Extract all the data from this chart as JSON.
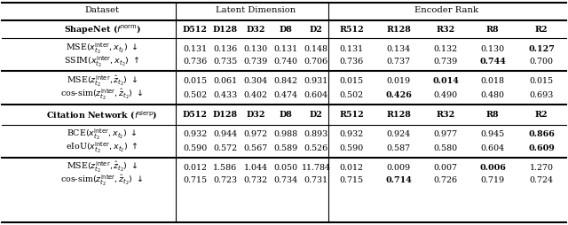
{
  "bg_color": "#ffffff",
  "top_header": {
    "col0": "Dataset",
    "col1": "Latent Dimension",
    "col2": "Encoder Rank"
  },
  "col_headers": [
    "D512",
    "D128",
    "D32",
    "D8",
    "D2",
    "R512",
    "R128",
    "R32",
    "R8",
    "R2"
  ],
  "section1_label": "ShapeNet ($f^{\\mathrm{norm}}$)",
  "section2_label": "Citation Network ($f^{\\mathrm{slerp}}$)",
  "rows": [
    {
      "group": 1,
      "subgroup": 1,
      "label": "MSE($x_{t_2}^{\\mathrm{inter}}, x_{t_2}$) $\\downarrow$",
      "values": [
        "0.131",
        "0.136",
        "0.130",
        "0.131",
        "0.148",
        "0.131",
        "0.134",
        "0.132",
        "0.130",
        "0.127"
      ],
      "bold": [
        9
      ]
    },
    {
      "group": 1,
      "subgroup": 1,
      "label": "SSIM($x_{t_2}^{\\mathrm{inter}}, x_{t_2}$) $\\uparrow$",
      "values": [
        "0.736",
        "0.735",
        "0.739",
        "0.740",
        "0.706",
        "0.736",
        "0.737",
        "0.739",
        "0.744",
        "0.700"
      ],
      "bold": [
        8
      ]
    },
    {
      "group": 1,
      "subgroup": 2,
      "label": "MSE($z_{t_2}^{\\mathrm{inter}}, \\hat{z}_{t_2}$) $\\downarrow$",
      "values": [
        "0.015",
        "0.061",
        "0.304",
        "0.842",
        "0.931",
        "0.015",
        "0.019",
        "0.014",
        "0.018",
        "0.015"
      ],
      "bold": [
        7
      ]
    },
    {
      "group": 1,
      "subgroup": 2,
      "label": "cos-sim($z_{t_2}^{\\mathrm{inter}}, \\hat{z}_{t_2}$) $\\downarrow$",
      "values": [
        "0.502",
        "0.433",
        "0.402",
        "0.474",
        "0.604",
        "0.502",
        "0.426",
        "0.490",
        "0.480",
        "0.693"
      ],
      "bold": [
        6
      ]
    },
    {
      "group": 2,
      "subgroup": 1,
      "label": "BCE($x_{t_2}^{\\mathrm{inter}}, x_{t_2}$) $\\downarrow$",
      "values": [
        "0.932",
        "0.944",
        "0.972",
        "0.988",
        "0.893",
        "0.932",
        "0.924",
        "0.977",
        "0.945",
        "0.866"
      ],
      "bold": [
        9
      ]
    },
    {
      "group": 2,
      "subgroup": 1,
      "label": "eIoU($x_{t_2}^{\\mathrm{inter}}, x_{t_2}$) $\\uparrow$",
      "values": [
        "0.590",
        "0.572",
        "0.567",
        "0.589",
        "0.526",
        "0.590",
        "0.587",
        "0.580",
        "0.604",
        "0.609"
      ],
      "bold": [
        9
      ]
    },
    {
      "group": 2,
      "subgroup": 2,
      "label": "MSE($z_{t_2}^{\\mathrm{inter}}, \\hat{z}_{t_2}$) $\\downarrow$",
      "values": [
        "0.012",
        "1.586",
        "1.044",
        "0.050",
        "11.784",
        "0.012",
        "0.009",
        "0.007",
        "0.006",
        "1.270"
      ],
      "bold": [
        8
      ]
    },
    {
      "group": 2,
      "subgroup": 2,
      "label": "cos-sim($z_{t_2}^{\\mathrm{inter}}, \\hat{z}_{t_2}$) $\\downarrow$",
      "values": [
        "0.715",
        "0.723",
        "0.732",
        "0.734",
        "0.731",
        "0.715",
        "0.714",
        "0.726",
        "0.719",
        "0.724"
      ],
      "bold": [
        6
      ]
    }
  ]
}
